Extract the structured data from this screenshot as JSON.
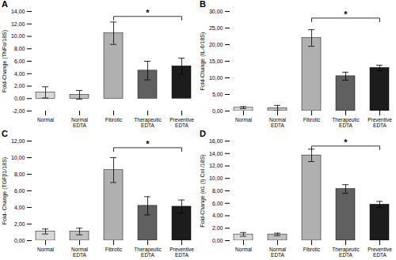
{
  "chart_data": [
    {
      "type": "bar",
      "title": "A",
      "ylabel": "Fold-Change (TNFα/18S)",
      "categories": [
        "Normal",
        "Normal\nEDTA",
        "Fibrotic",
        "Therapeutic\nEDTA",
        "Preventive\nEDTA"
      ],
      "values": [
        1.0,
        0.6,
        10.5,
        4.5,
        5.2
      ],
      "errors": [
        0.9,
        0.7,
        1.8,
        1.5,
        1.3
      ],
      "colors": [
        "#d8d8d8",
        "#c0c0c0",
        "#b0b0b0",
        "#606060",
        "#1c1c1c"
      ],
      "ylim": [
        -2,
        14
      ],
      "yticks": [
        {
          "value": -2,
          "label": "-2,00"
        },
        {
          "value": 0,
          "label": "0,00"
        },
        {
          "value": 2,
          "label": "2,00"
        },
        {
          "value": 4,
          "label": "4,00"
        },
        {
          "value": 6,
          "label": "6,00"
        },
        {
          "value": 8,
          "label": "8,00"
        },
        {
          "value": 10,
          "label": "10,00"
        },
        {
          "value": 12,
          "label": "12,00"
        },
        {
          "value": 14,
          "label": "14,00"
        }
      ],
      "annotations": [
        {
          "text": "*",
          "x_from": "Fibrotic",
          "x_to": "Preventive\nEDTA",
          "y": 13.2
        }
      ]
    },
    {
      "type": "bar",
      "title": "B",
      "ylabel": "Fold-Change (IL-6/18S)",
      "categories": [
        "Normal",
        "Normal\nEDTA",
        "Fibrotic",
        "Therapeutic\nEDTA",
        "Preventive\nEDTA"
      ],
      "values": [
        1.0,
        0.9,
        22.0,
        10.5,
        13.0
      ],
      "errors": [
        0.3,
        0.8,
        2.5,
        1.2,
        0.8
      ],
      "colors": [
        "#d8d8d8",
        "#c0c0c0",
        "#b0b0b0",
        "#606060",
        "#1c1c1c"
      ],
      "ylim": [
        0,
        30
      ],
      "yticks": [
        {
          "value": 0,
          "label": "0,00"
        },
        {
          "value": 5,
          "label": "5,00"
        },
        {
          "value": 10,
          "label": "10,00"
        },
        {
          "value": 15,
          "label": "15,00"
        },
        {
          "value": 20,
          "label": "20,00"
        },
        {
          "value": 25,
          "label": "25,00"
        },
        {
          "value": 30,
          "label": "30,00"
        }
      ],
      "annotations": [
        {
          "text": "*",
          "x_from": "Fibrotic",
          "x_to": "Preventive\nEDTA",
          "y": 28.0
        }
      ]
    },
    {
      "type": "bar",
      "title": "C",
      "ylabel": "Fold- Change (TGFβ1/18S)",
      "categories": [
        "Normal",
        "Normal\nEDTA",
        "Fibrotic",
        "Therapeutic\nEDTA",
        "Preventive\nEDTA"
      ],
      "values": [
        1.1,
        1.1,
        8.5,
        4.2,
        4.1
      ],
      "errors": [
        0.3,
        0.4,
        1.5,
        1.1,
        0.8
      ],
      "colors": [
        "#d8d8d8",
        "#c0c0c0",
        "#b0b0b0",
        "#606060",
        "#1c1c1c"
      ],
      "ylim": [
        0,
        12
      ],
      "yticks": [
        {
          "value": 0,
          "label": "0,00"
        },
        {
          "value": 2,
          "label": "2,00"
        },
        {
          "value": 4,
          "label": "4,00"
        },
        {
          "value": 6,
          "label": "6,00"
        },
        {
          "value": 8,
          "label": "8,00"
        },
        {
          "value": 10,
          "label": "10,00"
        },
        {
          "value": 12,
          "label": "12,00"
        }
      ],
      "annotations": [
        {
          "text": "*",
          "x_from": "Fibrotic",
          "x_to": "Preventive\nEDTA",
          "y": 11.2
        }
      ]
    },
    {
      "type": "bar",
      "title": "D",
      "ylabel": "Fold-Change (α1 (I) Col /18S)",
      "categories": [
        "Normal",
        "Normal\nEDTA",
        "Fibrotic",
        "Therapeutic\nEDTA",
        "Preventive\nEDTA"
      ],
      "values": [
        1.0,
        1.0,
        13.7,
        8.3,
        5.8
      ],
      "errors": [
        0.3,
        0.2,
        1.0,
        0.7,
        0.5
      ],
      "colors": [
        "#d8d8d8",
        "#c0c0c0",
        "#b0b0b0",
        "#606060",
        "#1c1c1c"
      ],
      "ylim": [
        0,
        16
      ],
      "yticks": [
        {
          "value": 0,
          "label": "0,00"
        },
        {
          "value": 2,
          "label": "2,00"
        },
        {
          "value": 4,
          "label": "4,00"
        },
        {
          "value": 6,
          "label": "6,00"
        },
        {
          "value": 8,
          "label": "8,00"
        },
        {
          "value": 10,
          "label": "10,00"
        },
        {
          "value": 12,
          "label": "12,00"
        },
        {
          "value": 14,
          "label": "14,00"
        },
        {
          "value": 16,
          "label": "16,00"
        }
      ],
      "annotations": [
        {
          "text": "*",
          "x_from": "Fibrotic",
          "x_to": "Preventive\nEDTA",
          "y": 15.2
        }
      ]
    }
  ]
}
